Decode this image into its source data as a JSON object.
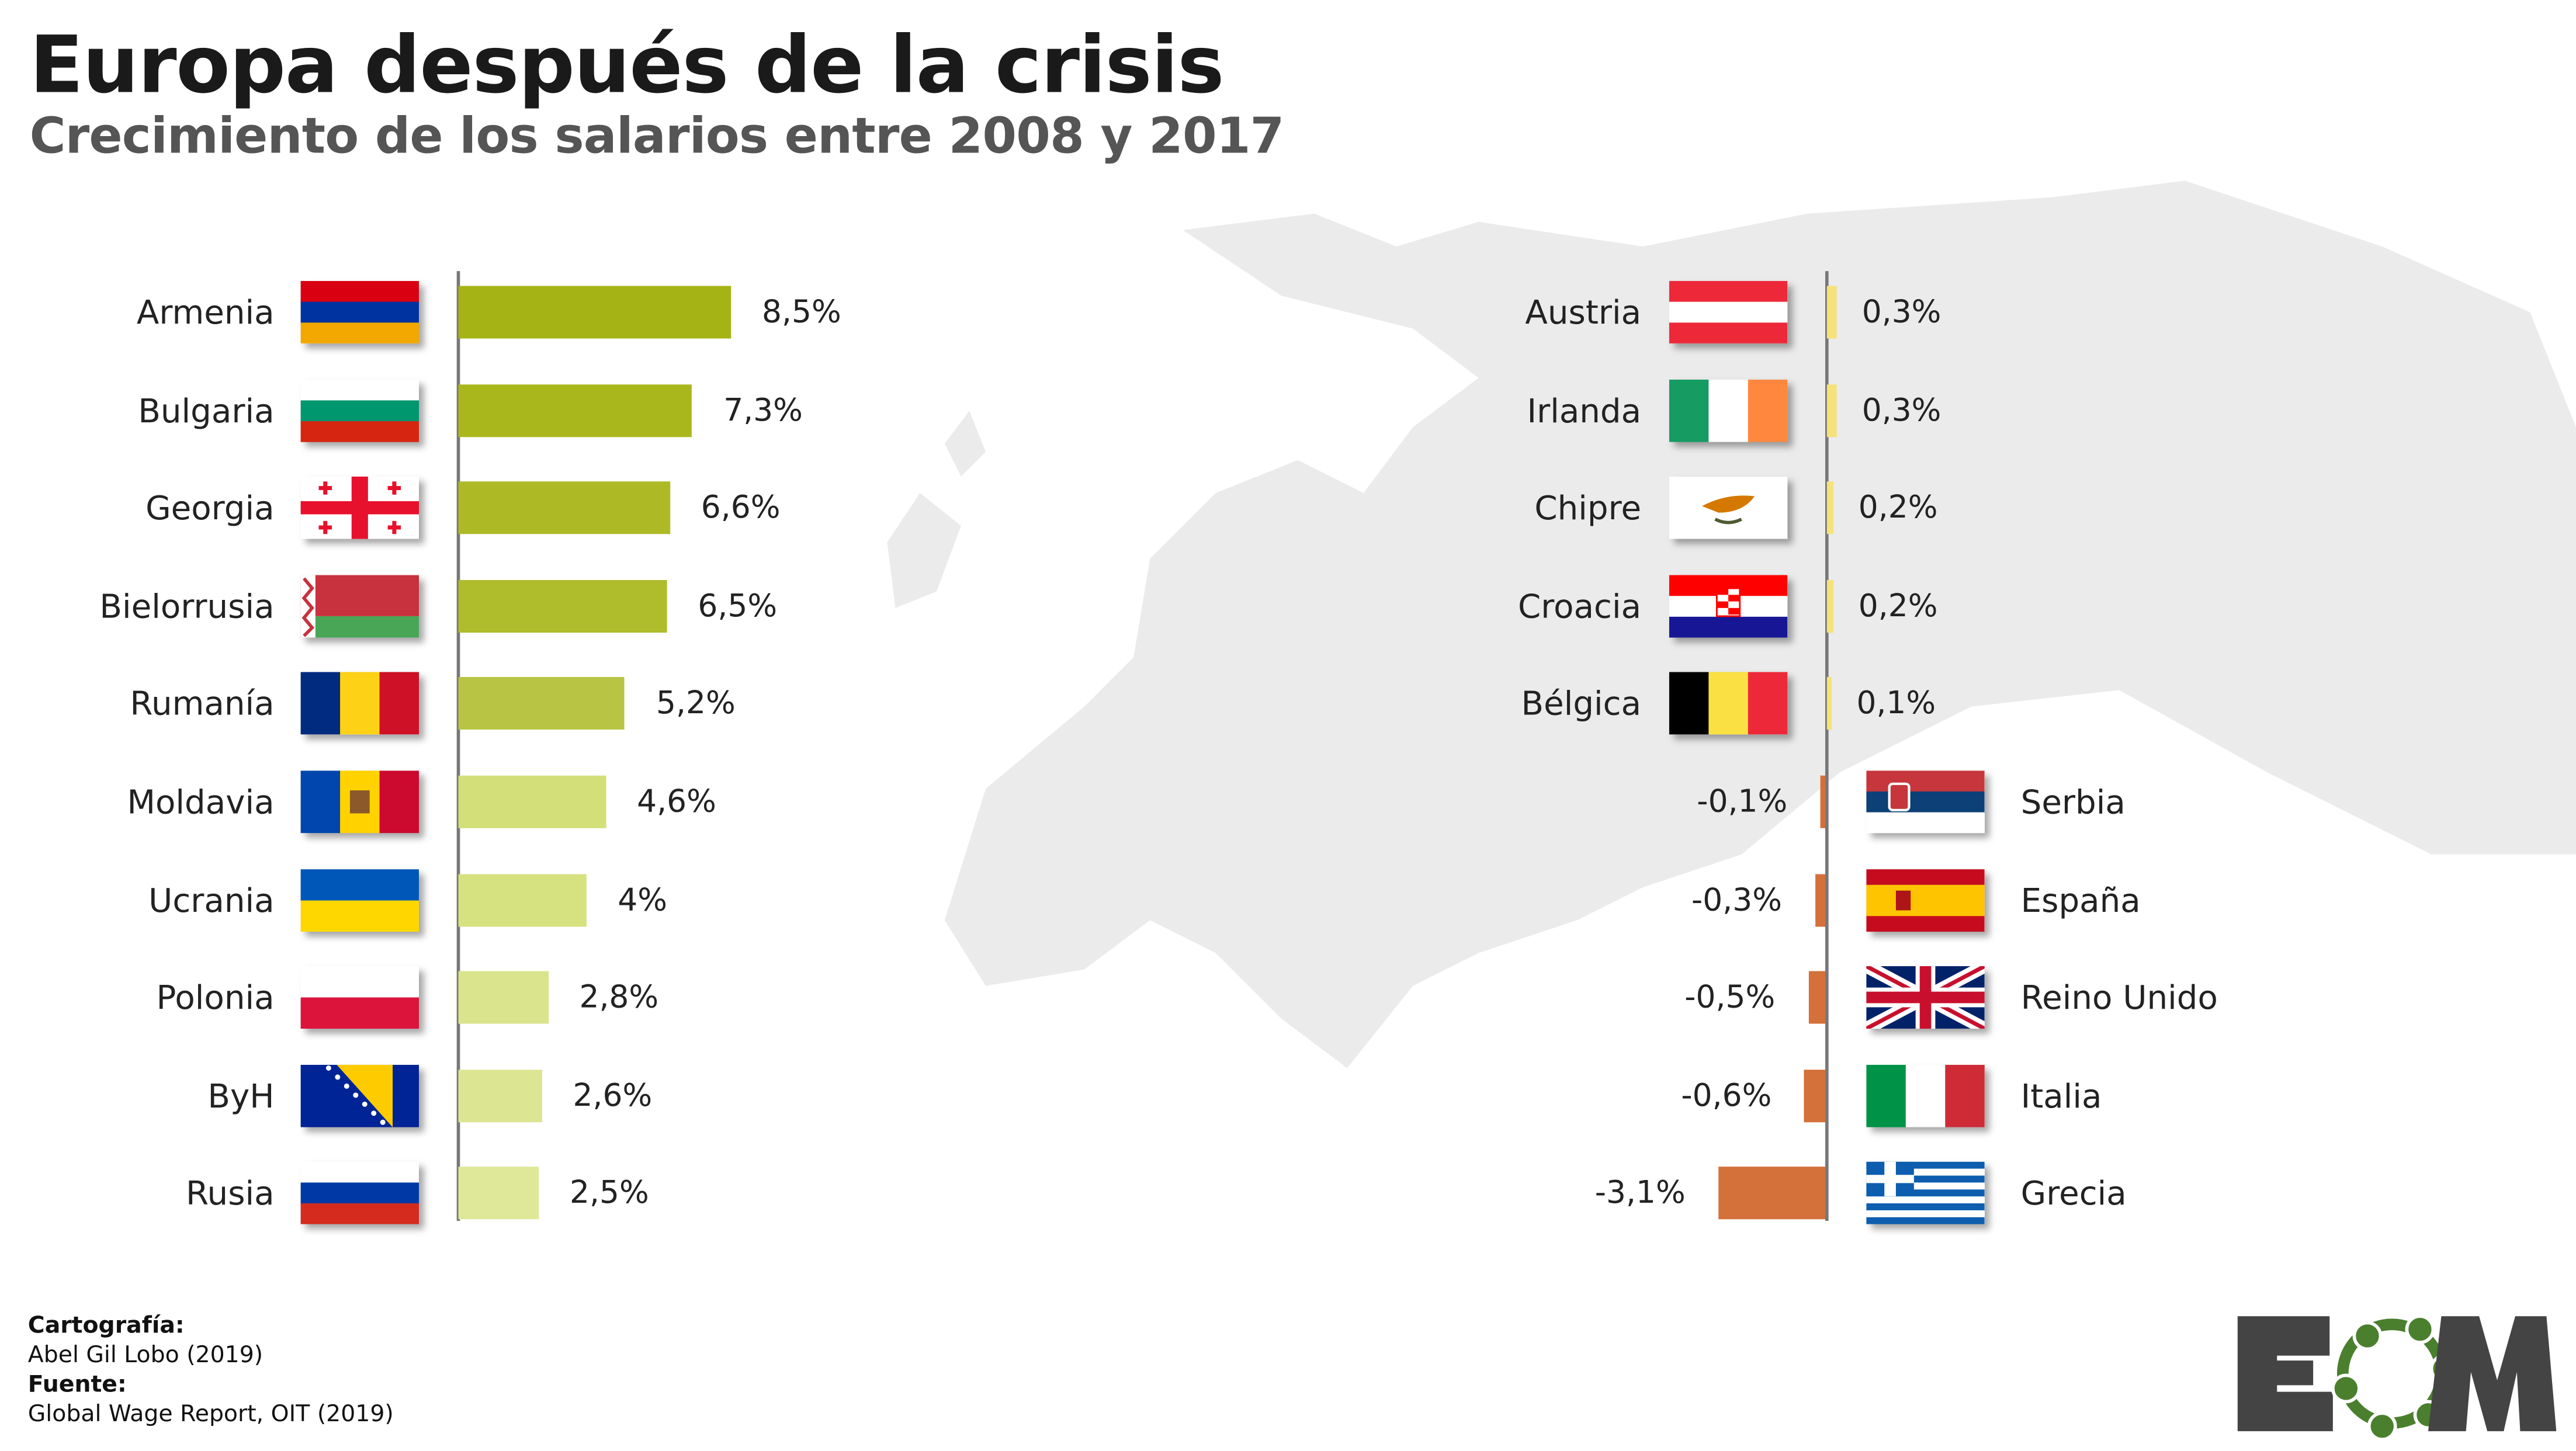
{
  "title": "Europa después de la crisis",
  "subtitle": "Crecimiento de los salarios entre 2008 y 2017",
  "chart_data": {
    "type": "bar",
    "title": "Europa después de la crisis",
    "subtitle": "Crecimiento de los salarios entre 2008 y 2017",
    "unit": "%",
    "left_group": {
      "categories": [
        "Armenia",
        "Bulgaria",
        "Georgia",
        "Bielorrusia",
        "Rumanía",
        "Moldavia",
        "Ucrania",
        "Polonia",
        "ByH",
        "Rusia"
      ],
      "values": [
        8.5,
        7.3,
        6.6,
        6.5,
        5.2,
        4.6,
        4.0,
        2.8,
        2.6,
        2.5
      ],
      "labels": [
        "8,5%",
        "7,3%",
        "6,6%",
        "6,5%",
        "5,2%",
        "4,6%",
        "4%",
        "2,8%",
        "2,6%",
        "2,5%"
      ],
      "colors": [
        "#a5b414",
        "#a9b71c",
        "#adba26",
        "#afbc2b",
        "#b8c444",
        "#d3df78",
        "#d6e17f",
        "#dae48d",
        "#dce592",
        "#dfe898"
      ]
    },
    "right_group": {
      "categories": [
        "Austria",
        "Irlanda",
        "Chipre",
        "Croacia",
        "Bélgica",
        "Serbia",
        "España",
        "Reino Unido",
        "Italia",
        "Grecia"
      ],
      "values": [
        0.3,
        0.3,
        0.2,
        0.2,
        0.1,
        -0.1,
        -0.3,
        -0.5,
        -0.6,
        -3.1
      ],
      "labels": [
        "0,3%",
        "0,3%",
        "0,2%",
        "0,2%",
        "0,1%",
        "-0,1%",
        "-0,3%",
        "-0,5%",
        "-0,6%",
        "-3,1%"
      ],
      "positive_color": "#f6e27a",
      "negative_color": "#d4703a"
    }
  },
  "flags": {
    "left": [
      "armenia",
      "bulgaria",
      "georgia",
      "belarus",
      "romania",
      "moldova",
      "ukraine",
      "poland",
      "bosnia",
      "russia"
    ],
    "right": [
      "austria",
      "ireland",
      "cyprus",
      "croatia",
      "belgium",
      "serbia",
      "spain",
      "uk",
      "italy",
      "greece"
    ]
  },
  "credits": {
    "cartography_label": "Cartografía:",
    "cartography": "Abel Gil Lobo (2019)",
    "source_label": "Fuente:",
    "source": "Global Wage Report, OIT (2019)"
  },
  "logo": {
    "text": "EOM",
    "dark": "#444444",
    "green": "#4a7f2e"
  }
}
